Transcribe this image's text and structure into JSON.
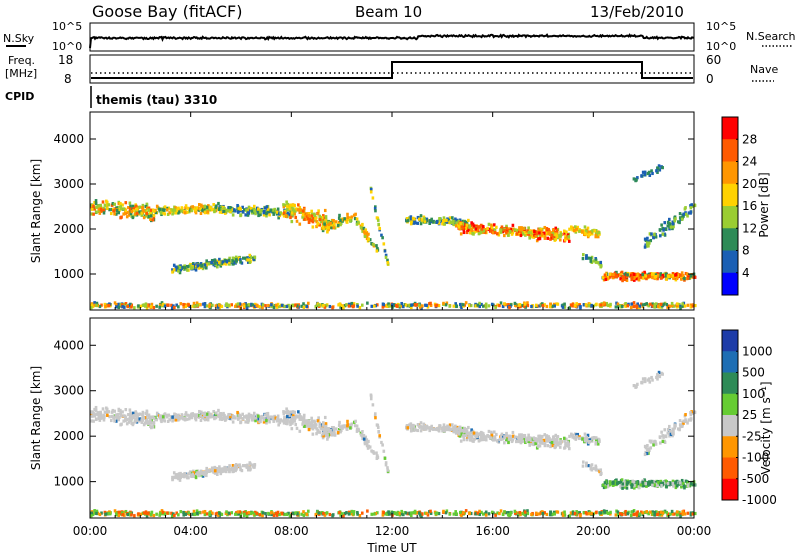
{
  "header": {
    "station": "Goose Bay (fitACF)",
    "beam": "Beam 10",
    "date": "13/Feb/2010"
  },
  "top_panels": {
    "nsky_label": "N.Sky",
    "nsearch_label": "N.Search",
    "nsky_ticks": [
      "10^5",
      "10^0"
    ],
    "freq_label": "Freq.",
    "freq_unit": "[MHz]",
    "freq_ticks": [
      "18",
      "8"
    ],
    "nave_label": "Nave",
    "nave_ticks": [
      "60",
      "0"
    ],
    "cpid_label": "CPID",
    "cpid_value": "themis (tau) 3310"
  },
  "chart_data": [
    {
      "type": "heatmap",
      "name": "Power",
      "ylabel": "Slant Range [km]",
      "yticks": [
        1000,
        2000,
        3000,
        4000
      ],
      "ylim": [
        200,
        4600
      ],
      "colorbar_label": "Power [dB]",
      "colorbar_ticks": [
        "28",
        "24",
        "20",
        "16",
        "12",
        "8",
        "4"
      ],
      "colorbar_colors": [
        "#ff0000",
        "#ff5a00",
        "#ff9600",
        "#ffd200",
        "#9acd32",
        "#2e8b57",
        "#1a5fb4",
        "#0000ff"
      ]
    },
    {
      "type": "heatmap",
      "name": "Velocity",
      "ylabel": "Slant Range [km]",
      "yticks": [
        1000,
        2000,
        3000,
        4000
      ],
      "ylim": [
        200,
        4600
      ],
      "colorbar_label": "Velocity [m s⁻¹]",
      "colorbar_ticks": [
        "1000",
        "500",
        "100",
        "25",
        "-25",
        "-100",
        "-500",
        "-1000"
      ],
      "colorbar_colors": [
        "#1e3ca8",
        "#1e6eb4",
        "#2e8b57",
        "#66cc33",
        "#c8c8c8",
        "#ff9600",
        "#ff5a00",
        "#ff0000"
      ]
    }
  ],
  "x_axis": {
    "label": "Time UT",
    "ticks": [
      "00:00",
      "04:00",
      "08:00",
      "12:00",
      "16:00",
      "20:00",
      "00:00"
    ],
    "hours": [
      0,
      4,
      8,
      12,
      16,
      20,
      24
    ]
  }
}
